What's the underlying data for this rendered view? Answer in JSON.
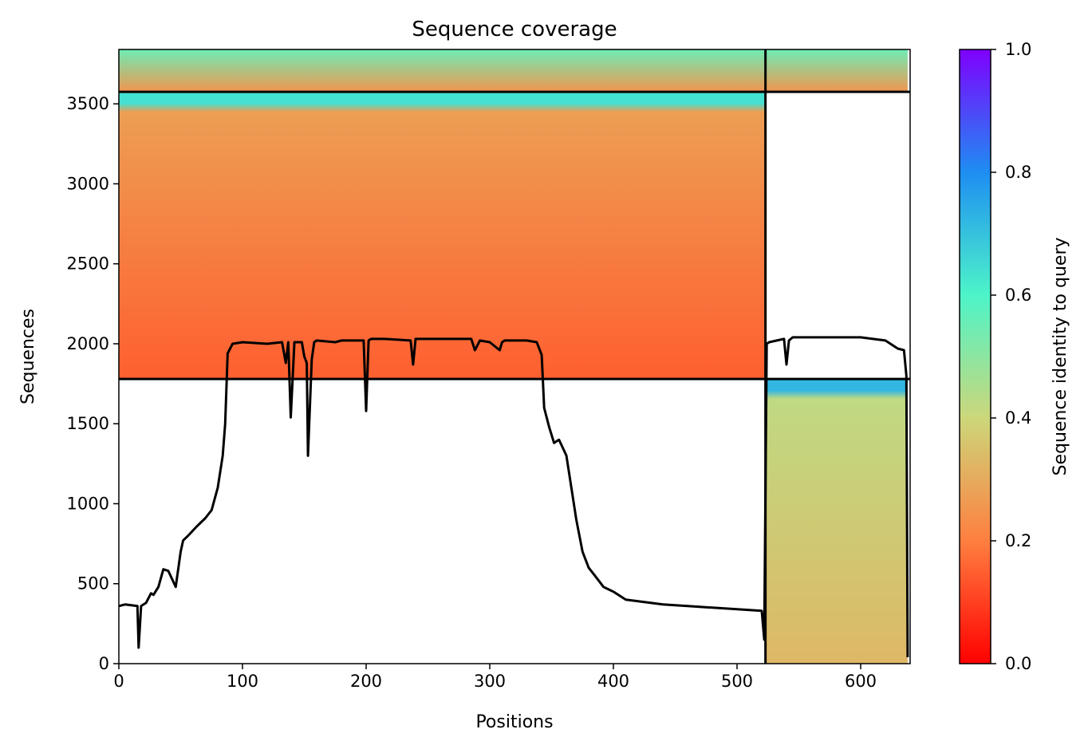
{
  "chart_data": {
    "type": "heatmap",
    "title": "Sequence coverage",
    "xlabel": "Positions",
    "ylabel": "Sequences",
    "xlim": [
      0,
      640
    ],
    "ylim": [
      0,
      3840
    ],
    "x_ticks": [
      0,
      100,
      200,
      300,
      400,
      500,
      600
    ],
    "y_ticks": [
      0,
      500,
      1000,
      1500,
      2000,
      2500,
      3000,
      3500
    ],
    "colorbar": {
      "label": "Sequence identity to query",
      "range": [
        0,
        1
      ],
      "ticks": [
        "0.0",
        "0.2",
        "0.4",
        "0.6",
        "0.8",
        "1.0"
      ],
      "colormap": "rainbow_r"
    },
    "boundaries": {
      "vertical_x": 523,
      "horizontal_y": [
        1780,
        3575
      ]
    },
    "blocks": [
      {
        "name": "block-a",
        "x_range": [
          523,
          638
        ],
        "y_range": [
          0,
          1780
        ],
        "identity_bottom": 0.33,
        "identity_top": 0.42,
        "identity_high_band": 0.72
      },
      {
        "name": "block-b",
        "x_range": [
          0,
          523
        ],
        "y_range": [
          1780,
          3575
        ],
        "identity_bottom": 0.15,
        "identity_top": 0.27,
        "identity_high_band": 0.64
      },
      {
        "name": "block-c",
        "x_range": [
          0,
          638
        ],
        "y_range": [
          3575,
          3840
        ],
        "identity_bottom": 0.25,
        "identity_top": 0.55
      }
    ],
    "coverage_line": {
      "color": "#000000",
      "x": [
        0,
        5,
        15,
        16,
        18,
        22,
        26,
        28,
        32,
        36,
        40,
        46,
        50,
        52,
        56,
        62,
        66,
        70,
        75,
        80,
        84,
        86,
        88,
        92,
        100,
        120,
        132,
        135,
        137,
        139,
        142,
        148,
        150,
        152,
        153,
        156,
        158,
        160,
        175,
        180,
        198,
        200,
        202,
        204,
        215,
        236,
        238,
        240,
        260,
        285,
        288,
        292,
        300,
        308,
        310,
        312,
        330,
        338,
        342,
        344,
        348,
        352,
        356,
        362,
        366,
        370,
        375,
        380,
        385,
        392,
        400,
        410,
        420,
        440,
        460,
        480,
        500,
        520,
        522,
        524,
        526,
        538,
        540,
        542,
        545,
        550,
        570,
        600,
        620,
        630,
        635,
        637,
        638
      ],
      "y": [
        360,
        370,
        360,
        100,
        360,
        380,
        440,
        430,
        480,
        590,
        580,
        480,
        700,
        770,
        800,
        850,
        880,
        910,
        960,
        1100,
        1300,
        1500,
        1940,
        2000,
        2010,
        2000,
        2010,
        1880,
        2010,
        1540,
        2010,
        2010,
        1920,
        1880,
        1300,
        1900,
        2010,
        2020,
        2010,
        2020,
        2020,
        1580,
        2020,
        2030,
        2030,
        2020,
        1870,
        2030,
        2030,
        2030,
        1960,
        2020,
        2010,
        1960,
        2010,
        2020,
        2020,
        2010,
        1930,
        1600,
        1480,
        1380,
        1400,
        1300,
        1100,
        900,
        700,
        600,
        550,
        480,
        450,
        400,
        390,
        370,
        360,
        350,
        340,
        330,
        150,
        2000,
        2010,
        2030,
        1870,
        2020,
        2040,
        2040,
        2040,
        2040,
        2020,
        1970,
        1960,
        1800,
        40
      ]
    }
  }
}
